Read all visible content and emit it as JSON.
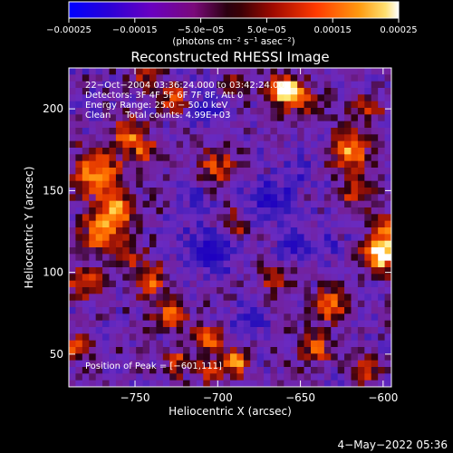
{
  "chart_data": {
    "type": "heatmap",
    "title": "Reconstructed RHESSI Image",
    "xlabel": "Heliocentric X (arcsec)",
    "ylabel": "Heliocentric Y (arcsec)",
    "xlim": [
      -790,
      -595
    ],
    "ylim": [
      30,
      225
    ],
    "x_ticks": [
      -750,
      -700,
      -650,
      -600
    ],
    "x_tick_labels": [
      "−750",
      "−700",
      "−650",
      "−600"
    ],
    "y_ticks": [
      50,
      100,
      150,
      200
    ],
    "y_tick_labels": [
      "50",
      "100",
      "150",
      "200"
    ],
    "colorbar": {
      "range": [
        -0.00025,
        0.00025
      ],
      "tick_values": [
        -0.00025,
        -0.00015,
        -5e-05,
        5e-05,
        0.00015,
        0.00025
      ],
      "tick_labels": [
        "−0.00025",
        "−0.00015",
        "−5.0e−05",
        "5.0e−05",
        "0.00015",
        "0.00025"
      ],
      "unit_label": "(photons cm⁻² s⁻¹ asec⁻²)"
    },
    "colormap": [
      "#1a0068",
      "#3a1aa8",
      "#6a2cc0",
      "#7e2ea6",
      "#5a124c",
      "#9a1810",
      "#e03200",
      "#ff6a00",
      "#ffb01a",
      "#ffe060",
      "#ffffff"
    ],
    "info_lines": [
      "22−Oct−2004 03:36:24.000 to 03:42:24.000",
      "Detectors: 3F 4F 5F 6F 7F 8F, Att 0",
      "Energy Range: 25.0 − 50.0 keV",
      "Clean     Total counts: 4.99E+03"
    ],
    "peak_label": "Position of Peak = [−601,111]",
    "peak": [
      -601,
      111
    ],
    "grid": false
  },
  "footer": {
    "date": "4−May−2022 05:36"
  }
}
